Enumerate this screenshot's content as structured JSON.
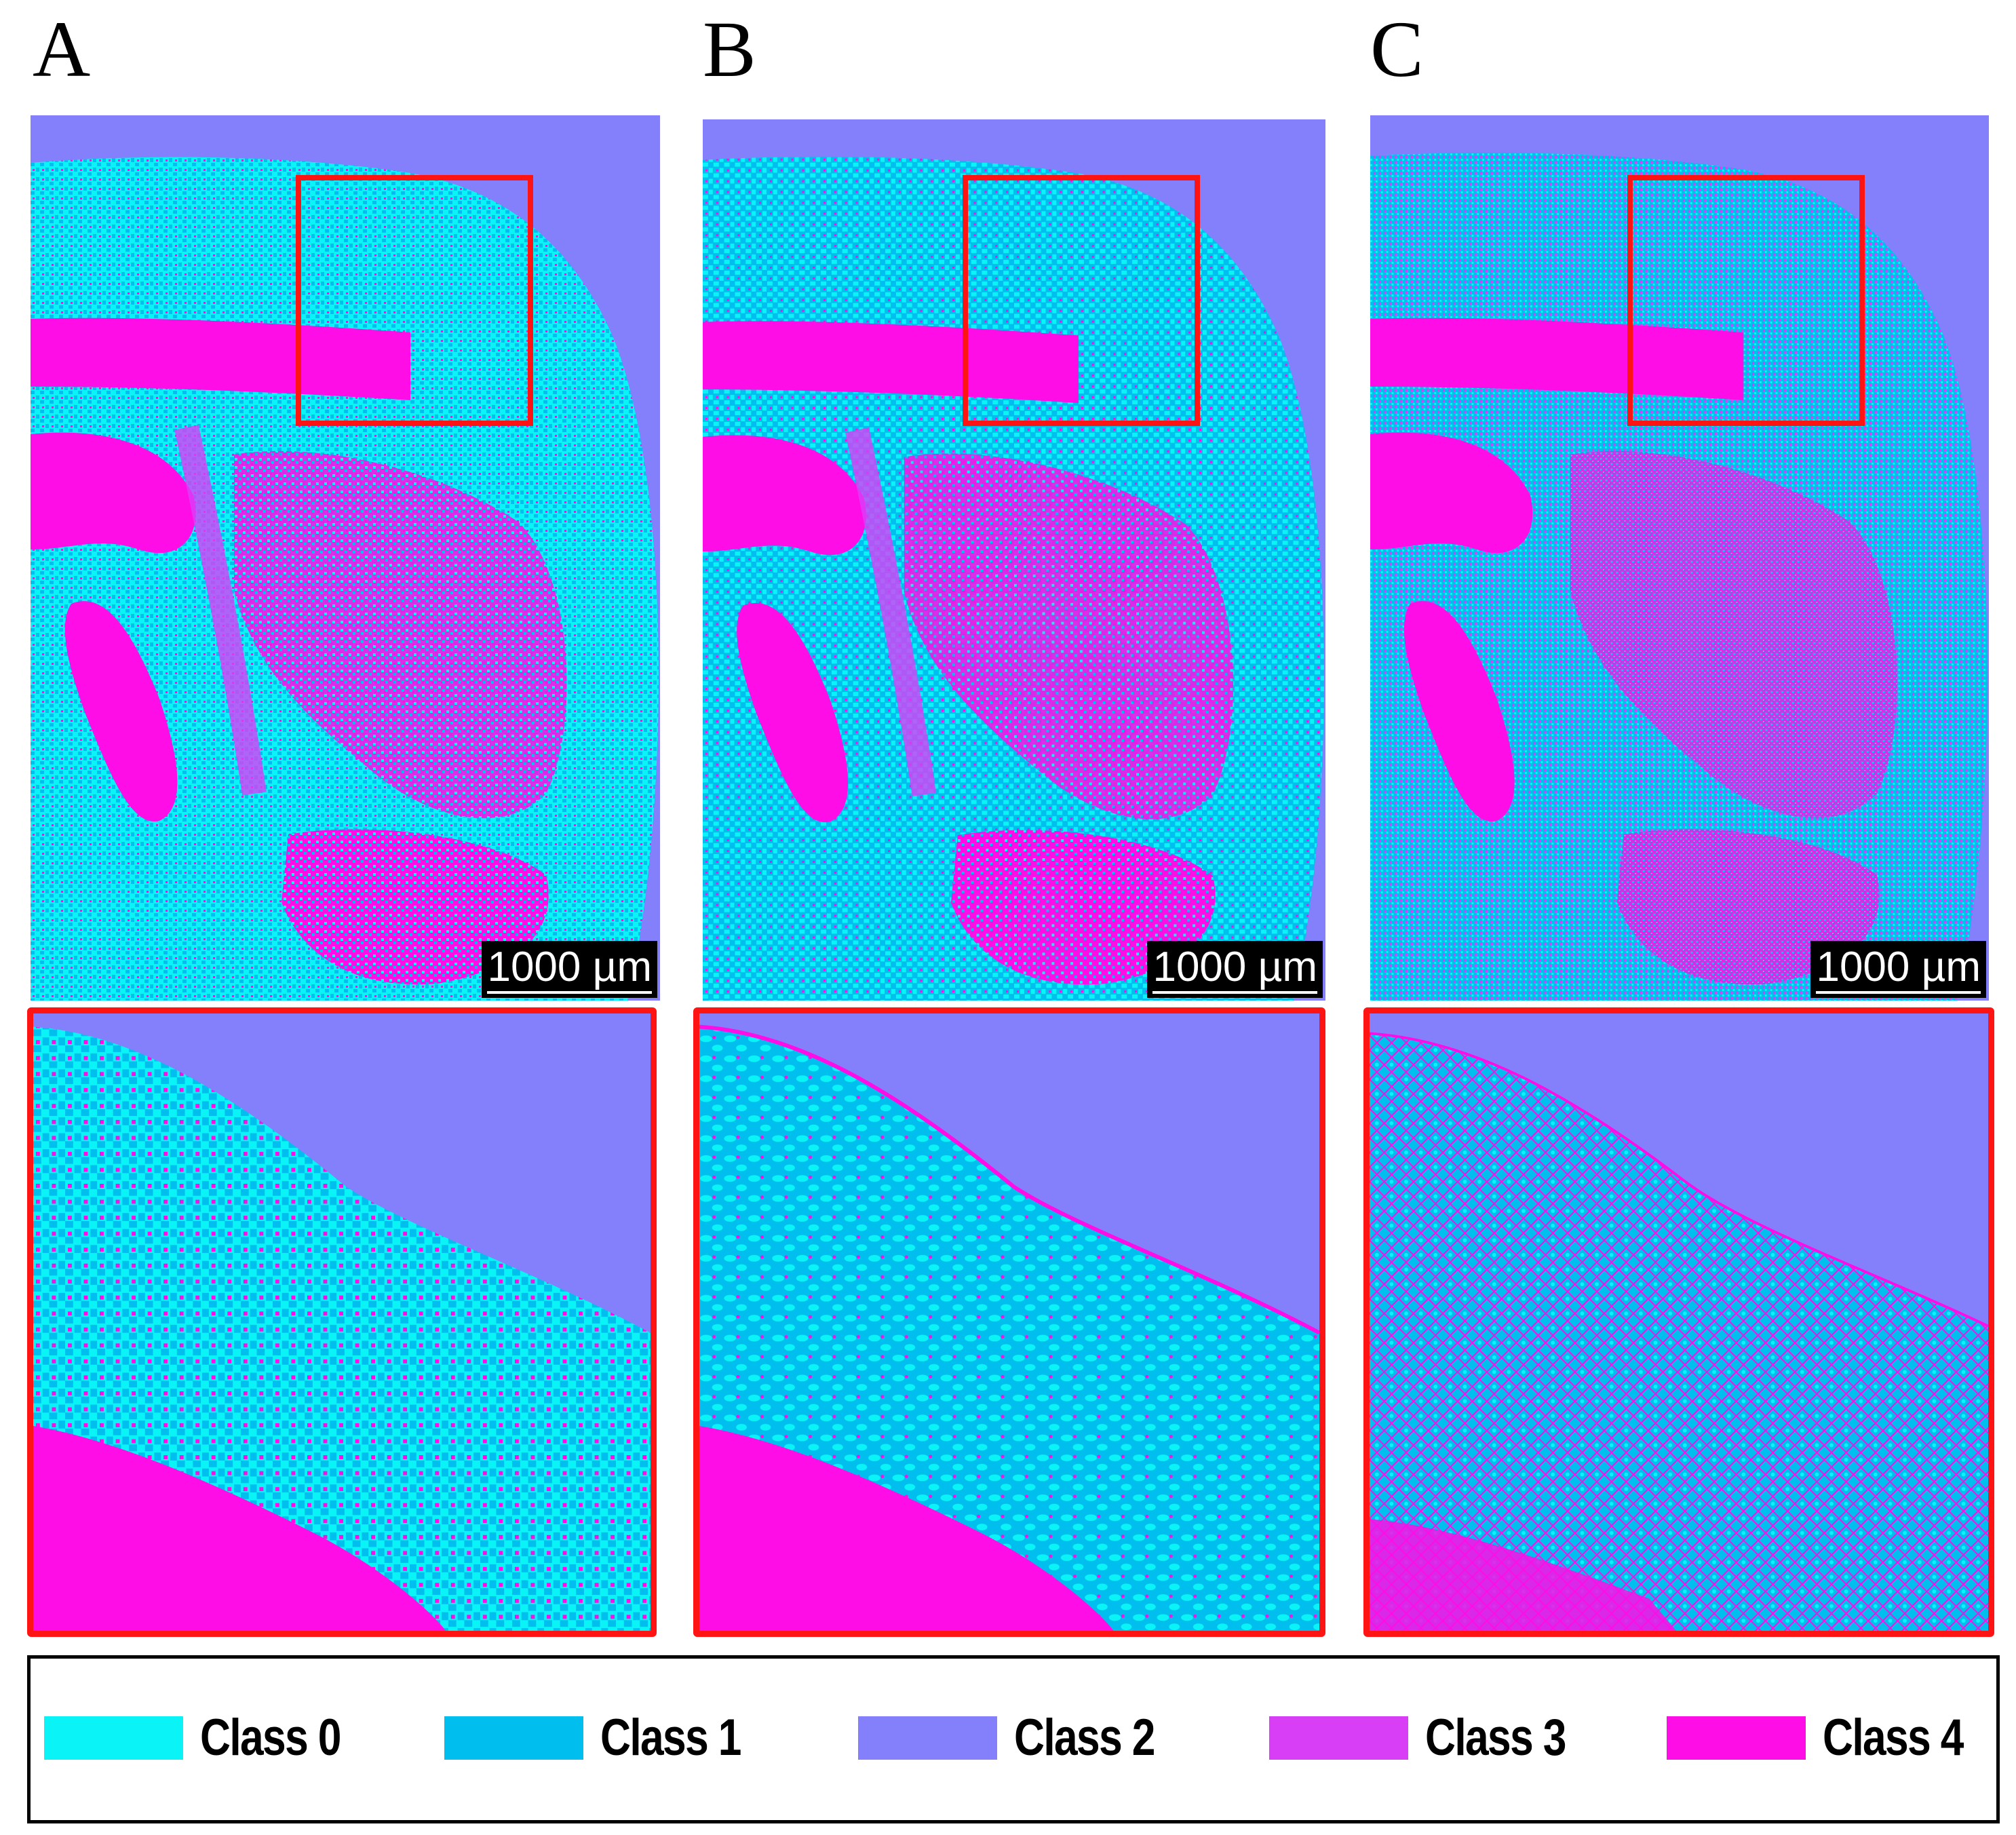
{
  "panels": [
    {
      "letter": "A",
      "scale_label": "1000 µm"
    },
    {
      "letter": "B",
      "scale_label": "1000 µm"
    },
    {
      "letter": "C",
      "scale_label": "1000 µm"
    }
  ],
  "legend": {
    "items": [
      {
        "label": "Class 0",
        "color": "#0af3f6"
      },
      {
        "label": "Class 1",
        "color": "#00bfef"
      },
      {
        "label": "Class 2",
        "color": "#8480fb"
      },
      {
        "label": "Class 3",
        "color": "#d93ef7"
      },
      {
        "label": "Class 4",
        "color": "#ff0de6"
      }
    ]
  }
}
